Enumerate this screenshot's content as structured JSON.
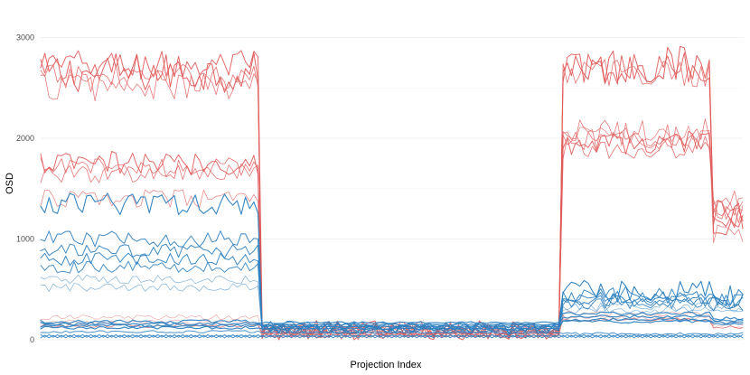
{
  "chart_data": {
    "type": "line",
    "xlabel": "Projection Index",
    "ylabel": "OSD",
    "ylim": [
      0,
      3300
    ],
    "xlim": [
      0,
      168
    ],
    "yticks": [
      0,
      1000,
      2000,
      3000
    ],
    "grid": true,
    "legend": "none",
    "colors": {
      "red": "#e05a5a",
      "blue": "#2b7fbf",
      "grid": "#ebebeb"
    },
    "segments": {
      "high_1": [
        0,
        52
      ],
      "low_1": [
        53,
        124
      ],
      "high_2": [
        125,
        160
      ],
      "mid_2": [
        161,
        168
      ]
    },
    "series": [
      {
        "color": "red",
        "width": 1.0,
        "opacity": 0.95,
        "levels": [
          2650,
          95,
          2720,
          1230
        ],
        "noise": 200
      },
      {
        "color": "red",
        "width": 1.0,
        "opacity": 0.9,
        "levels": [
          2720,
          100,
          2690,
          1240
        ],
        "noise": 160
      },
      {
        "color": "red",
        "width": 0.8,
        "opacity": 0.85,
        "levels": [
          2600,
          90,
          2650,
          1300
        ],
        "noise": 140
      },
      {
        "color": "red",
        "width": 0.8,
        "opacity": 0.8,
        "levels": [
          2520,
          80,
          2050,
          1350
        ],
        "noise": 160
      },
      {
        "color": "red",
        "width": 1.0,
        "opacity": 0.9,
        "levels": [
          1750,
          100,
          1950,
          1190
        ],
        "noise": 120
      },
      {
        "color": "red",
        "width": 0.8,
        "opacity": 0.85,
        "levels": [
          1700,
          90,
          1900,
          1260
        ],
        "noise": 110
      },
      {
        "color": "red",
        "width": 0.8,
        "opacity": 0.8,
        "levels": [
          1650,
          80,
          1980,
          1320
        ],
        "noise": 100
      },
      {
        "color": "red",
        "width": 0.8,
        "opacity": 0.7,
        "levels": [
          1400,
          70,
          2050,
          1050
        ],
        "noise": 90
      },
      {
        "color": "red",
        "width": 0.6,
        "opacity": 0.6,
        "levels": [
          220,
          40,
          260,
          160
        ],
        "noise": 30
      },
      {
        "color": "red",
        "width": 0.6,
        "opacity": 0.55,
        "levels": [
          170,
          35,
          220,
          130
        ],
        "noise": 25
      },
      {
        "color": "red",
        "width": 0.8,
        "opacity": 0.8,
        "levels": [
          140,
          60,
          200,
          120
        ],
        "noise": 20
      },
      {
        "color": "blue",
        "width": 1.1,
        "opacity": 0.95,
        "levels": [
          1350,
          110,
          480,
          430
        ],
        "noise": 110
      },
      {
        "color": "blue",
        "width": 1.0,
        "opacity": 0.9,
        "levels": [
          1000,
          130,
          450,
          420
        ],
        "noise": 80
      },
      {
        "color": "blue",
        "width": 1.0,
        "opacity": 0.9,
        "levels": [
          880,
          150,
          420,
          400
        ],
        "noise": 70
      },
      {
        "color": "blue",
        "width": 1.0,
        "opacity": 0.9,
        "levels": [
          800,
          120,
          390,
          360
        ],
        "noise": 65
      },
      {
        "color": "blue",
        "width": 1.0,
        "opacity": 0.85,
        "levels": [
          720,
          100,
          360,
          340
        ],
        "noise": 60
      },
      {
        "color": "blue",
        "width": 0.7,
        "opacity": 0.6,
        "levels": [
          600,
          90,
          330,
          320
        ],
        "noise": 45
      },
      {
        "color": "blue",
        "width": 0.7,
        "opacity": 0.6,
        "levels": [
          520,
          80,
          300,
          300
        ],
        "noise": 40
      },
      {
        "color": "blue",
        "width": 1.2,
        "opacity": 0.9,
        "levels": [
          180,
          170,
          260,
          210
        ],
        "noise": 18
      },
      {
        "color": "blue",
        "width": 1.2,
        "opacity": 0.9,
        "levels": [
          160,
          150,
          230,
          190
        ],
        "noise": 16
      },
      {
        "color": "blue",
        "width": 1.2,
        "opacity": 0.9,
        "levels": [
          140,
          130,
          200,
          170
        ],
        "noise": 14
      },
      {
        "color": "blue",
        "width": 1.2,
        "opacity": 0.9,
        "levels": [
          120,
          110,
          180,
          150
        ],
        "noise": 14
      },
      {
        "color": "blue",
        "width": 1.0,
        "opacity": 0.85,
        "levels": [
          80,
          70,
          60,
          60
        ],
        "noise": 12
      },
      {
        "color": "blue",
        "width": 1.0,
        "opacity": 0.85,
        "levels": [
          40,
          40,
          40,
          40
        ],
        "noise": 25,
        "zigzag": true
      },
      {
        "color": "blue",
        "width": 1.0,
        "opacity": 0.85,
        "levels": [
          35,
          35,
          35,
          35
        ],
        "noise": 25,
        "zigzag": true,
        "phase": 1
      }
    ]
  }
}
